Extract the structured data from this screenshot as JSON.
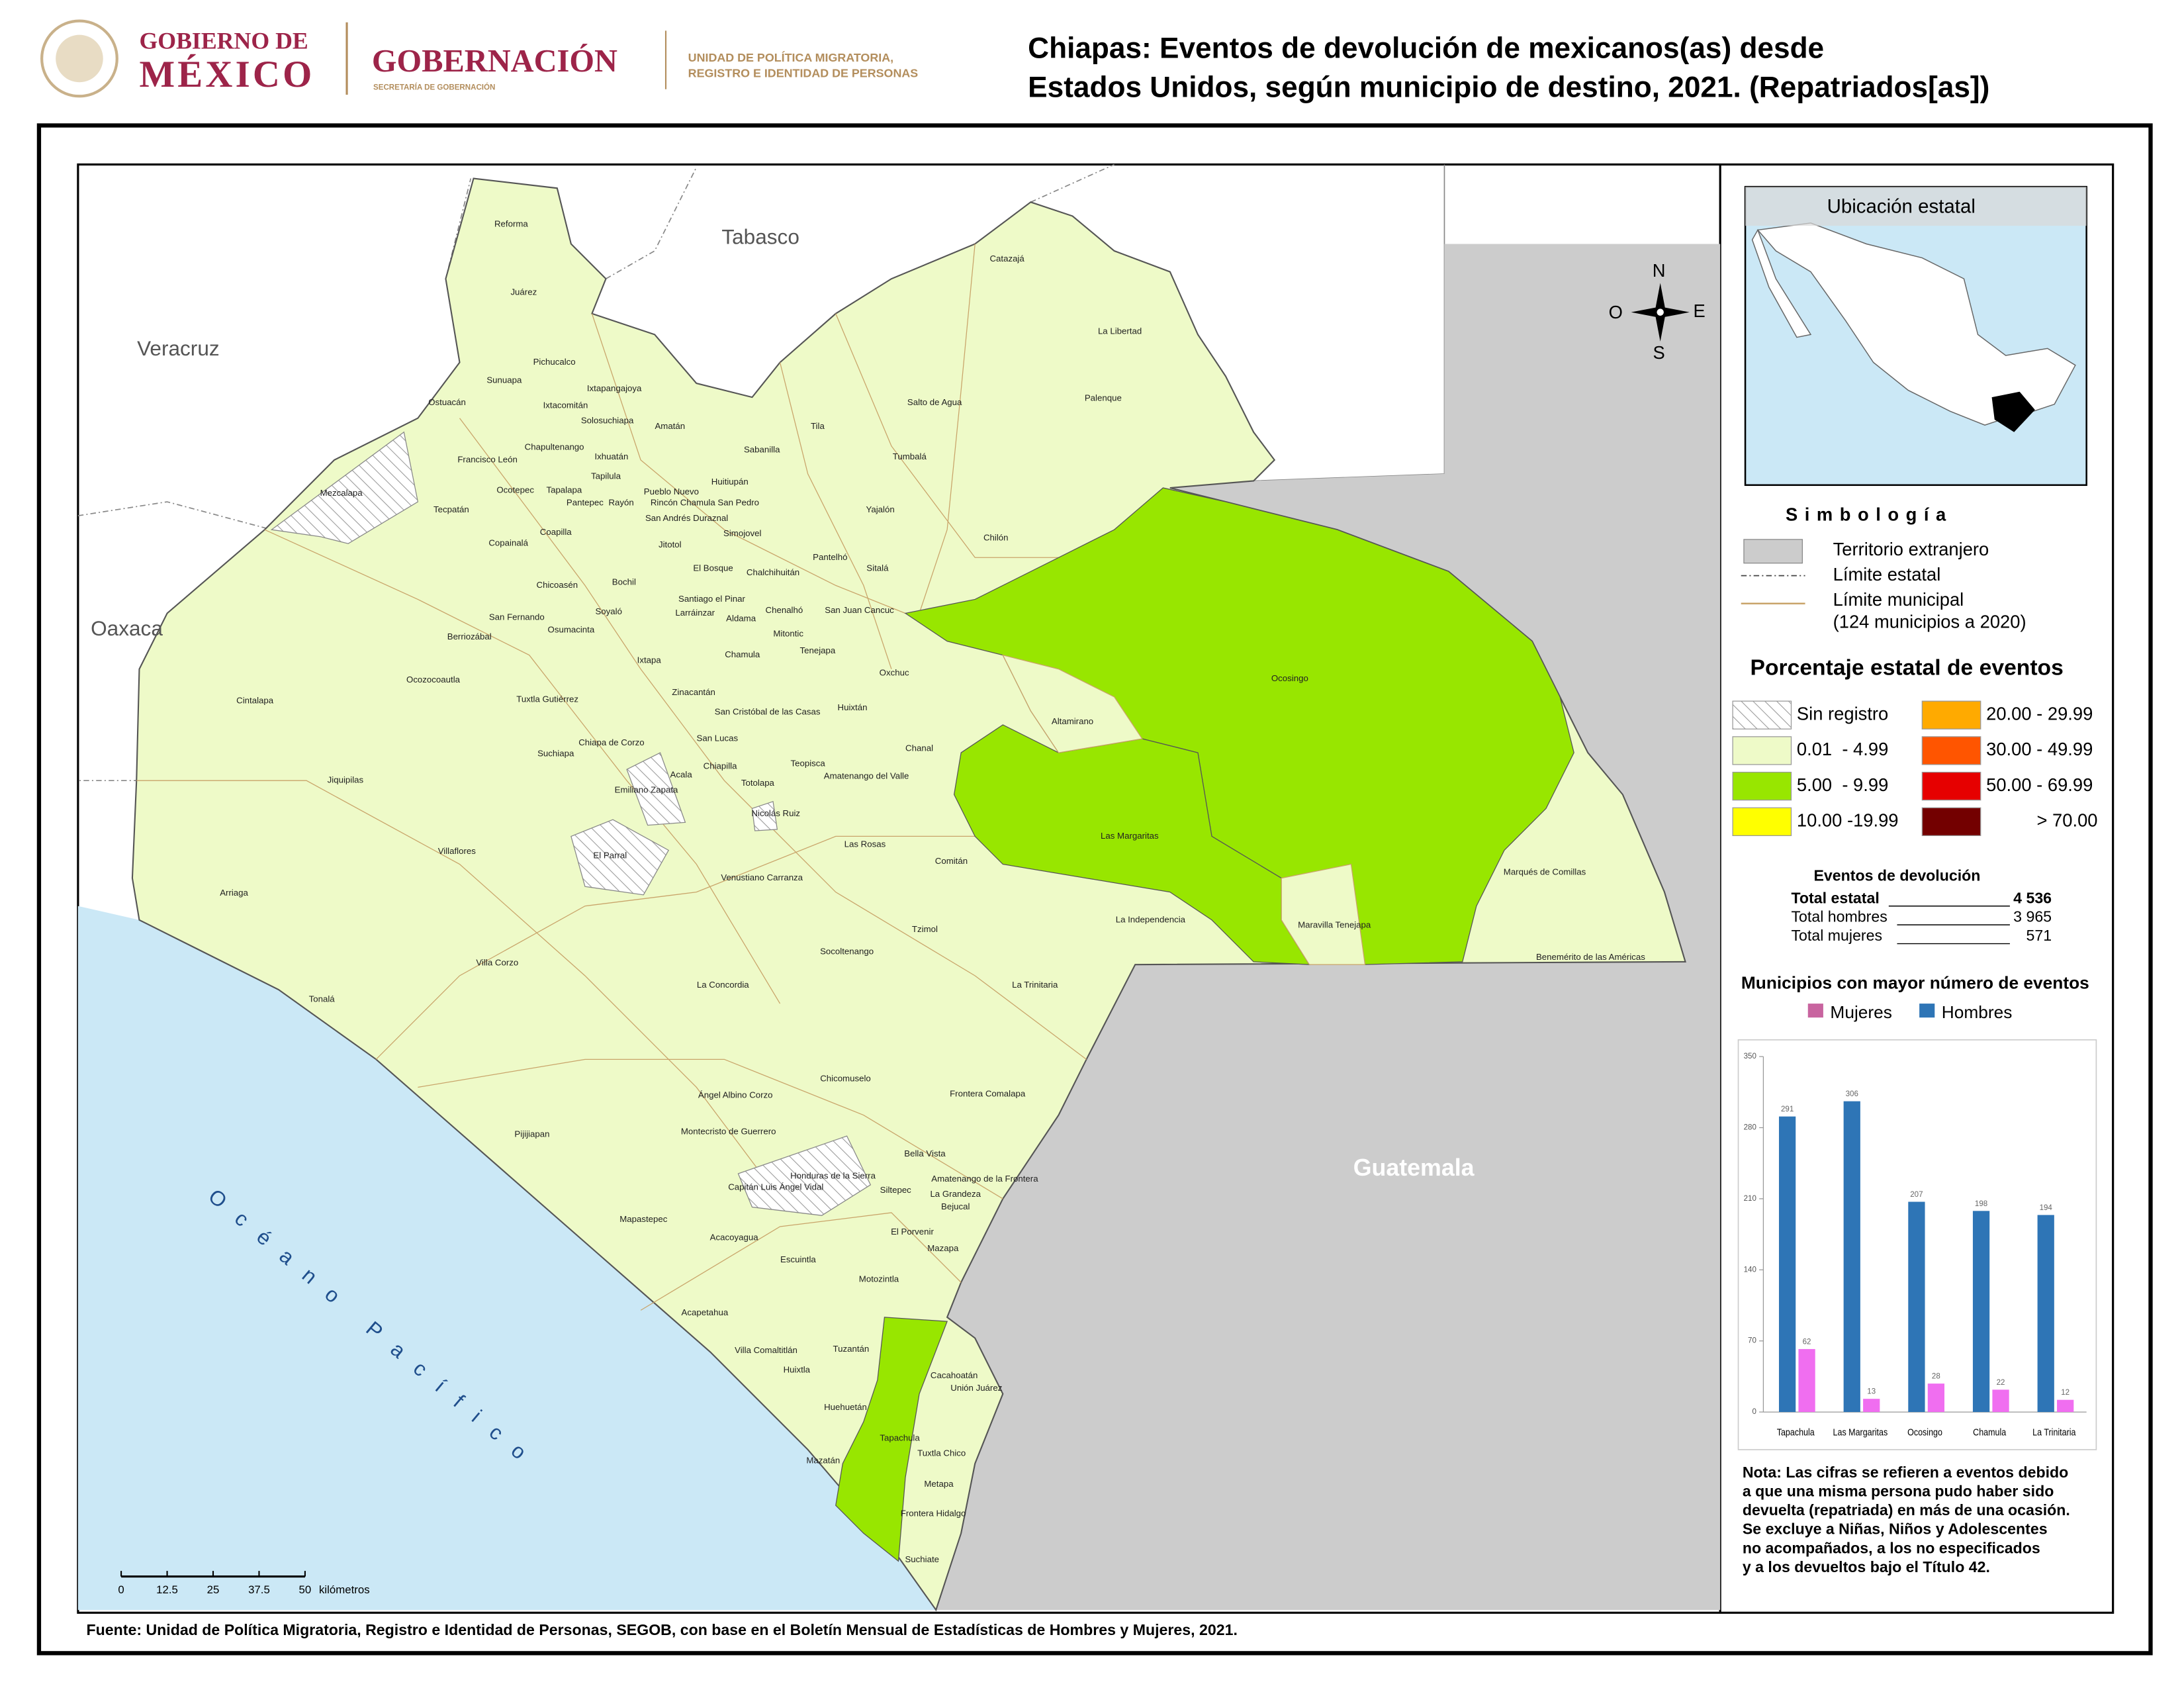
{
  "header": {
    "logo_line1": "GOBIERNO DE",
    "logo_line2": "MÉXICO",
    "agency": "GOBERNACIÓN",
    "agency_sub": "SECRETARÍA DE GOBERNACIÓN",
    "unit_lines": [
      "UNIDAD DE POLÍTICA MIGRATORIA,",
      "REGISTRO E IDENTIDAD DE PERSONAS"
    ],
    "title_lines": [
      "Chiapas: Eventos de devolución de mexicanos(as) desde",
      "Estados Unidos, según municipio de destino, 2021. (Repatriados[as])"
    ]
  },
  "map": {
    "regions": [
      "Tabasco",
      "Veracruz",
      "Oaxaca"
    ],
    "country": "Guatemala",
    "ocean": "Océano Pacífico",
    "compass": [
      "N",
      "S",
      "E",
      "O"
    ],
    "scale_ticks": [
      "0",
      "12.5",
      "25",
      "37.5",
      "50"
    ],
    "scale_unit": "kilómetros",
    "municipalities": [
      "Reforma",
      "Juárez",
      "Pichucalco",
      "Sunuapa",
      "Ixtapangajoya",
      "Ostuacán",
      "Ixtacomitán",
      "Solosuchiapa",
      "Amatán",
      "Chapultenango",
      "Francisco León",
      "Ixhuatán",
      "Tapilula",
      "Pueblo Nuevo",
      "Rayón",
      "Rincón Chamula San Pedro",
      "Ocotepec",
      "Tapalapa",
      "Pantepec",
      "Huitiupán",
      "Sabanilla",
      "Tila",
      "Salto de Agua",
      "Tumbalá",
      "Palenque",
      "La Libertad",
      "Catazajá",
      "Mezcalapa",
      "Tecpatán",
      "San Andrés Duraznal",
      "Coapilla",
      "Simojovel",
      "Yajalón",
      "Copainalá",
      "Jitotol",
      "Chilón",
      "Pantelhó",
      "El Bosque",
      "Chalchihuitán",
      "Sitalá",
      "Chicoasén",
      "Bochil",
      "Santiago el Pinar",
      "Larráinzar",
      "Aldama",
      "Chenalhó",
      "San Juan Cancuc",
      "San Fernando",
      "Soyaló",
      "Osumacinta",
      "Mitontic",
      "Berriozábal",
      "Tenejapa",
      "Ixtapa",
      "Chamula",
      "Oxchuc",
      "Ocosingo",
      "Ocozocoautla",
      "Zinacantán",
      "Cintalapa",
      "Tuxtla Gutiérrez",
      "San Cristóbal de las Casas",
      "Huixtán",
      "Altamirano",
      "Chiapa de Corzo",
      "San Lucas",
      "Suchiapa",
      "Chanal",
      "Teopisca",
      "Jiquipilas",
      "Acala",
      "Chiapilla",
      "Amatenango del Valle",
      "Totolapa",
      "Emiliano Zapata",
      "Nicolás Ruiz",
      "Villaflores",
      "Las Margaritas",
      "Las Rosas",
      "El Parral",
      "Comitán",
      "Marqués de Comillas",
      "Venustiano Carranza",
      "Arriaga",
      "La Independencia",
      "Maravilla Tenejapa",
      "Tzimol",
      "Socoltenango",
      "Benemérito de las Américas",
      "Villa Corzo",
      "La Concordia",
      "La Trinitaria",
      "Tonalá",
      "Chicomuselo",
      "Ángel Albino Corzo",
      "Frontera Comalapa",
      "Pijijiapan",
      "Montecristo de Guerrero",
      "Bella Vista",
      "Honduras de la Sierra",
      "Amatenango de la Frontera",
      "Capitán Luis Ángel Vidal",
      "Siltepec",
      "La Grandeza",
      "Bejucal",
      "Mapastepec",
      "El Porvenir",
      "Acacoyagua",
      "Mazapa",
      "Escuintla",
      "Motozintla",
      "Acapetahua",
      "Villa Comaltitlán",
      "Tuzantán",
      "Huixtla",
      "Cacahoatán",
      "Unión Juárez",
      "Huehuetán",
      "Tapachula",
      "Tuxtla Chico",
      "Mazatán",
      "Metapa",
      "Frontera Hidalgo",
      "Suchiate"
    ]
  },
  "inset": {
    "title": "Ubicación estatal"
  },
  "symbology": {
    "title": "Simbología",
    "items": [
      "Territorio extranjero",
      "Límite estatal",
      "Límite municipal",
      "(124 municipios a 2020)"
    ]
  },
  "classes": {
    "title": "Porcentaje estatal de eventos",
    "items": [
      {
        "label": "Sin registro"
      },
      {
        "label": "0.01  - 4.99",
        "color": "#eefac8"
      },
      {
        "label": "5.00  - 9.99",
        "color": "#98e600"
      },
      {
        "label": "10.00 -19.99",
        "color": "#ffff00"
      },
      {
        "label": "20.00 - 29.99",
        "color": "#ffaa00"
      },
      {
        "label": "30.00 - 49.99",
        "color": "#ff5500"
      },
      {
        "label": "50.00 - 69.99",
        "color": "#e60000"
      },
      {
        "label": "> 70.00",
        "color": "#730000"
      }
    ]
  },
  "totals": {
    "title": "Eventos de devolución",
    "rows": [
      [
        "Total estatal",
        "4 536"
      ],
      [
        "Total hombres",
        "3 965"
      ],
      [
        "Total mujeres",
        "571"
      ]
    ]
  },
  "chart_data": {
    "type": "bar",
    "title": "Municipios con mayor número de eventos",
    "categories": [
      "Tapachula",
      "Las Margaritas",
      "Ocosingo",
      "Chamula",
      "La Trinitaria"
    ],
    "series": [
      {
        "name": "Mujeres",
        "color": "#f06ef0",
        "legend_color": "#c8649f",
        "values": [
          62,
          13,
          28,
          22,
          12
        ]
      },
      {
        "name": "Hombres",
        "color": "#2e75b6",
        "values": [
          291,
          306,
          207,
          198,
          194
        ]
      }
    ],
    "ylim": [
      0,
      350
    ],
    "yticks": [
      0,
      70,
      140,
      210,
      280,
      350
    ]
  },
  "note": [
    "Nota: Las cifras se refieren a eventos debido",
    "a que una misma persona pudo haber sido",
    "devuelta (repatriada) en más de una ocasión.",
    "Se excluye a Niñas, Niños y Adolescentes",
    "no acompañados, a los no especificados",
    "y a los devueltos bajo el Título 42."
  ],
  "source": "Fuente: Unidad de Política Migratoria, Registro e Identidad de Personas, SEGOB, con base en el Boletín Mensual de Estadísticas de Hombres y Mujeres, 2021."
}
